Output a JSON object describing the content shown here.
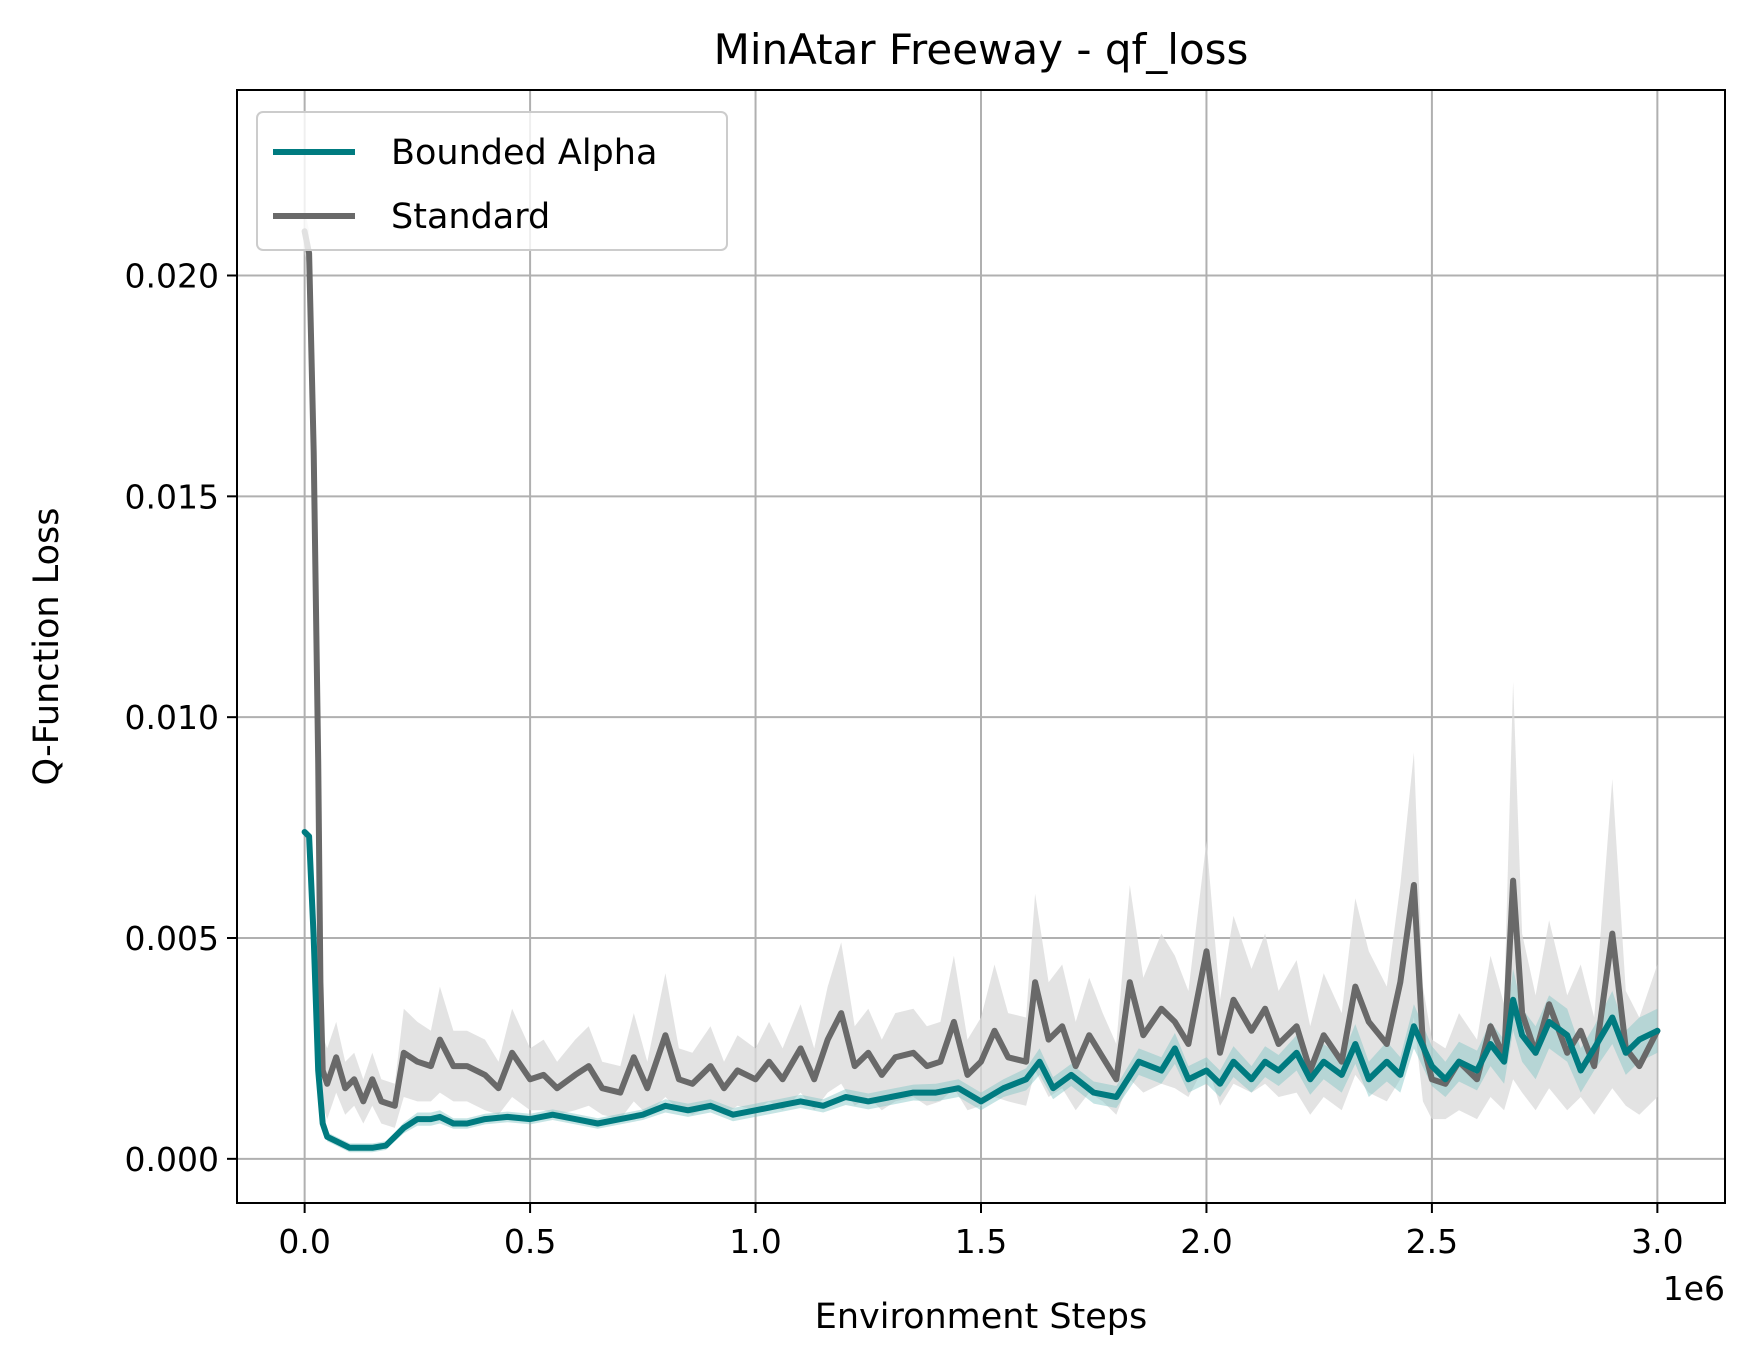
{
  "chart_data": {
    "type": "line",
    "title": "MinAtar Freeway - qf_loss",
    "xlabel": "Environment Steps",
    "ylabel": "Q-Function Loss",
    "x_offset_label": "1e6",
    "xlim": [
      -0.15,
      3.15
    ],
    "ylim": [
      -0.001,
      0.0242
    ],
    "x_ticks": [
      0.0,
      0.5,
      1.0,
      1.5,
      2.0,
      2.5,
      3.0
    ],
    "x_tick_labels": [
      "0.0",
      "0.5",
      "1.0",
      "1.5",
      "2.0",
      "2.5",
      "3.0"
    ],
    "y_ticks": [
      0.0,
      0.005,
      0.01,
      0.015,
      0.02
    ],
    "y_tick_labels": [
      "0.000",
      "0.005",
      "0.010",
      "0.015",
      "0.020"
    ],
    "grid": true,
    "legend_position": "top-left",
    "series": [
      {
        "name": "Bounded Alpha",
        "color": "#007b80",
        "band_color": "#7fc3c3",
        "points": [
          [
            0.0,
            0.0074
          ],
          [
            0.01,
            0.0073
          ],
          [
            0.02,
            0.005
          ],
          [
            0.03,
            0.002
          ],
          [
            0.04,
            0.0008
          ],
          [
            0.05,
            0.0005
          ],
          [
            0.07,
            0.0004
          ],
          [
            0.1,
            0.00025
          ],
          [
            0.15,
            0.00025
          ],
          [
            0.18,
            0.0003
          ],
          [
            0.2,
            0.0005
          ],
          [
            0.22,
            0.0007
          ],
          [
            0.25,
            0.0009
          ],
          [
            0.28,
            0.0009
          ],
          [
            0.3,
            0.00095
          ],
          [
            0.33,
            0.0008
          ],
          [
            0.36,
            0.0008
          ],
          [
            0.4,
            0.0009
          ],
          [
            0.45,
            0.00095
          ],
          [
            0.5,
            0.0009
          ],
          [
            0.55,
            0.001
          ],
          [
            0.6,
            0.0009
          ],
          [
            0.65,
            0.0008
          ],
          [
            0.7,
            0.0009
          ],
          [
            0.75,
            0.001
          ],
          [
            0.8,
            0.0012
          ],
          [
            0.85,
            0.0011
          ],
          [
            0.9,
            0.0012
          ],
          [
            0.95,
            0.001
          ],
          [
            1.0,
            0.0011
          ],
          [
            1.05,
            0.0012
          ],
          [
            1.1,
            0.0013
          ],
          [
            1.15,
            0.0012
          ],
          [
            1.2,
            0.0014
          ],
          [
            1.25,
            0.0013
          ],
          [
            1.3,
            0.0014
          ],
          [
            1.35,
            0.0015
          ],
          [
            1.4,
            0.0015
          ],
          [
            1.45,
            0.0016
          ],
          [
            1.5,
            0.0013
          ],
          [
            1.55,
            0.0016
          ],
          [
            1.6,
            0.0018
          ],
          [
            1.63,
            0.0022
          ],
          [
            1.66,
            0.0016
          ],
          [
            1.7,
            0.0019
          ],
          [
            1.75,
            0.0015
          ],
          [
            1.8,
            0.0014
          ],
          [
            1.85,
            0.0022
          ],
          [
            1.9,
            0.002
          ],
          [
            1.93,
            0.0025
          ],
          [
            1.96,
            0.0018
          ],
          [
            2.0,
            0.002
          ],
          [
            2.03,
            0.0017
          ],
          [
            2.06,
            0.0022
          ],
          [
            2.1,
            0.0018
          ],
          [
            2.13,
            0.0022
          ],
          [
            2.16,
            0.002
          ],
          [
            2.2,
            0.0024
          ],
          [
            2.23,
            0.0018
          ],
          [
            2.26,
            0.0022
          ],
          [
            2.3,
            0.0019
          ],
          [
            2.33,
            0.0026
          ],
          [
            2.36,
            0.0018
          ],
          [
            2.4,
            0.0022
          ],
          [
            2.43,
            0.0019
          ],
          [
            2.46,
            0.003
          ],
          [
            2.5,
            0.0021
          ],
          [
            2.53,
            0.0018
          ],
          [
            2.56,
            0.0022
          ],
          [
            2.6,
            0.002
          ],
          [
            2.63,
            0.0026
          ],
          [
            2.66,
            0.0022
          ],
          [
            2.68,
            0.0036
          ],
          [
            2.7,
            0.0028
          ],
          [
            2.73,
            0.0024
          ],
          [
            2.76,
            0.0031
          ],
          [
            2.8,
            0.0028
          ],
          [
            2.83,
            0.002
          ],
          [
            2.86,
            0.0025
          ],
          [
            2.9,
            0.0032
          ],
          [
            2.93,
            0.0024
          ],
          [
            2.96,
            0.0027
          ],
          [
            3.0,
            0.0029
          ]
        ],
        "band_halfwidth": [
          0.0001,
          0.0001,
          0.0001,
          0.0001,
          0.0001,
          0.0001,
          0.0001,
          0.0001,
          0.0001,
          0.0001,
          0.0001,
          0.00012,
          0.00015,
          0.00015,
          0.00015,
          0.00012,
          0.00012,
          0.00012,
          0.00012,
          0.00012,
          0.00012,
          0.00012,
          0.00012,
          0.00012,
          0.00012,
          0.00015,
          0.00015,
          0.00015,
          0.00015,
          0.00015,
          0.00015,
          0.00015,
          0.00015,
          0.00018,
          0.00018,
          0.00018,
          0.00018,
          0.0002,
          0.0002,
          0.0002,
          0.0002,
          0.00025,
          0.0003,
          0.00025,
          0.00025,
          0.00025,
          0.00025,
          0.0003,
          0.0003,
          0.00035,
          0.0003,
          0.0003,
          0.0003,
          0.00035,
          0.0003,
          0.00035,
          0.00035,
          0.0004,
          0.00035,
          0.0004,
          0.0004,
          0.00045,
          0.0004,
          0.00045,
          0.0004,
          0.0005,
          0.00045,
          0.0004,
          0.00045,
          0.00045,
          0.0005,
          0.0005,
          0.0007,
          0.0006,
          0.0006,
          0.0006,
          0.0006,
          0.0005,
          0.0005,
          0.0006,
          0.0005,
          0.0005,
          0.0005
        ]
      },
      {
        "name": "Standard",
        "color": "#696969",
        "band_color": "#d9d9d9",
        "points": [
          [
            0.0,
            0.021
          ],
          [
            0.01,
            0.0205
          ],
          [
            0.02,
            0.016
          ],
          [
            0.03,
            0.009
          ],
          [
            0.035,
            0.004
          ],
          [
            0.04,
            0.002
          ],
          [
            0.05,
            0.0017
          ],
          [
            0.07,
            0.0023
          ],
          [
            0.09,
            0.0016
          ],
          [
            0.11,
            0.0018
          ],
          [
            0.13,
            0.0013
          ],
          [
            0.15,
            0.0018
          ],
          [
            0.17,
            0.0013
          ],
          [
            0.2,
            0.0012
          ],
          [
            0.22,
            0.0024
          ],
          [
            0.25,
            0.0022
          ],
          [
            0.28,
            0.0021
          ],
          [
            0.3,
            0.0027
          ],
          [
            0.33,
            0.0021
          ],
          [
            0.36,
            0.0021
          ],
          [
            0.4,
            0.0019
          ],
          [
            0.43,
            0.0016
          ],
          [
            0.46,
            0.0024
          ],
          [
            0.5,
            0.0018
          ],
          [
            0.53,
            0.0019
          ],
          [
            0.56,
            0.0016
          ],
          [
            0.6,
            0.0019
          ],
          [
            0.63,
            0.0021
          ],
          [
            0.66,
            0.0016
          ],
          [
            0.7,
            0.0015
          ],
          [
            0.73,
            0.0023
          ],
          [
            0.76,
            0.0016
          ],
          [
            0.8,
            0.0028
          ],
          [
            0.83,
            0.0018
          ],
          [
            0.86,
            0.0017
          ],
          [
            0.9,
            0.0021
          ],
          [
            0.93,
            0.0016
          ],
          [
            0.96,
            0.002
          ],
          [
            1.0,
            0.0018
          ],
          [
            1.03,
            0.0022
          ],
          [
            1.06,
            0.0018
          ],
          [
            1.1,
            0.0025
          ],
          [
            1.13,
            0.0018
          ],
          [
            1.16,
            0.0027
          ],
          [
            1.19,
            0.0033
          ],
          [
            1.22,
            0.0021
          ],
          [
            1.25,
            0.0024
          ],
          [
            1.28,
            0.0019
          ],
          [
            1.31,
            0.0023
          ],
          [
            1.35,
            0.0024
          ],
          [
            1.38,
            0.0021
          ],
          [
            1.41,
            0.0022
          ],
          [
            1.44,
            0.0031
          ],
          [
            1.47,
            0.0019
          ],
          [
            1.5,
            0.0022
          ],
          [
            1.53,
            0.0029
          ],
          [
            1.56,
            0.0023
          ],
          [
            1.6,
            0.0022
          ],
          [
            1.62,
            0.004
          ],
          [
            1.65,
            0.0027
          ],
          [
            1.68,
            0.003
          ],
          [
            1.71,
            0.0021
          ],
          [
            1.74,
            0.0028
          ],
          [
            1.77,
            0.0023
          ],
          [
            1.8,
            0.0018
          ],
          [
            1.83,
            0.004
          ],
          [
            1.86,
            0.0028
          ],
          [
            1.9,
            0.0034
          ],
          [
            1.93,
            0.0031
          ],
          [
            1.96,
            0.0026
          ],
          [
            2.0,
            0.0047
          ],
          [
            2.03,
            0.0024
          ],
          [
            2.06,
            0.0036
          ],
          [
            2.1,
            0.0029
          ],
          [
            2.13,
            0.0034
          ],
          [
            2.16,
            0.0026
          ],
          [
            2.2,
            0.003
          ],
          [
            2.23,
            0.002
          ],
          [
            2.26,
            0.0028
          ],
          [
            2.3,
            0.0022
          ],
          [
            2.33,
            0.0039
          ],
          [
            2.36,
            0.0031
          ],
          [
            2.4,
            0.0026
          ],
          [
            2.43,
            0.004
          ],
          [
            2.46,
            0.0062
          ],
          [
            2.48,
            0.0026
          ],
          [
            2.5,
            0.0018
          ],
          [
            2.53,
            0.0017
          ],
          [
            2.56,
            0.0022
          ],
          [
            2.6,
            0.0018
          ],
          [
            2.63,
            0.003
          ],
          [
            2.66,
            0.0023
          ],
          [
            2.68,
            0.0063
          ],
          [
            2.7,
            0.0033
          ],
          [
            2.73,
            0.0024
          ],
          [
            2.76,
            0.0035
          ],
          [
            2.8,
            0.0024
          ],
          [
            2.83,
            0.0029
          ],
          [
            2.86,
            0.0021
          ],
          [
            2.9,
            0.0051
          ],
          [
            2.93,
            0.0025
          ],
          [
            2.96,
            0.0021
          ],
          [
            3.0,
            0.0029
          ]
        ],
        "band_halfwidth": [
          0.0005,
          0.0005,
          0.0006,
          0.0008,
          0.0008,
          0.0008,
          0.0008,
          0.0008,
          0.0006,
          0.0006,
          0.0005,
          0.0006,
          0.0005,
          0.0005,
          0.001,
          0.0009,
          0.0008,
          0.0012,
          0.0008,
          0.0008,
          0.0008,
          0.0006,
          0.001,
          0.0007,
          0.0008,
          0.0006,
          0.0008,
          0.0009,
          0.0006,
          0.0006,
          0.001,
          0.0006,
          0.0014,
          0.0007,
          0.0007,
          0.0009,
          0.0006,
          0.0008,
          0.0007,
          0.0009,
          0.0007,
          0.001,
          0.0007,
          0.0012,
          0.0016,
          0.0009,
          0.001,
          0.0008,
          0.001,
          0.001,
          0.0009,
          0.0009,
          0.0015,
          0.0008,
          0.001,
          0.0015,
          0.001,
          0.001,
          0.002,
          0.0013,
          0.0014,
          0.001,
          0.0013,
          0.001,
          0.0008,
          0.0022,
          0.0013,
          0.0017,
          0.0015,
          0.0012,
          0.0025,
          0.0012,
          0.0019,
          0.0014,
          0.0017,
          0.0012,
          0.0015,
          0.001,
          0.0014,
          0.0011,
          0.002,
          0.0016,
          0.0013,
          0.0022,
          0.003,
          0.0013,
          0.0009,
          0.0008,
          0.0011,
          0.0009,
          0.0016,
          0.0012,
          0.0045,
          0.0018,
          0.0013,
          0.0019,
          0.0013,
          0.0015,
          0.0011,
          0.0035,
          0.0013,
          0.0011,
          0.0015
        ]
      }
    ]
  }
}
